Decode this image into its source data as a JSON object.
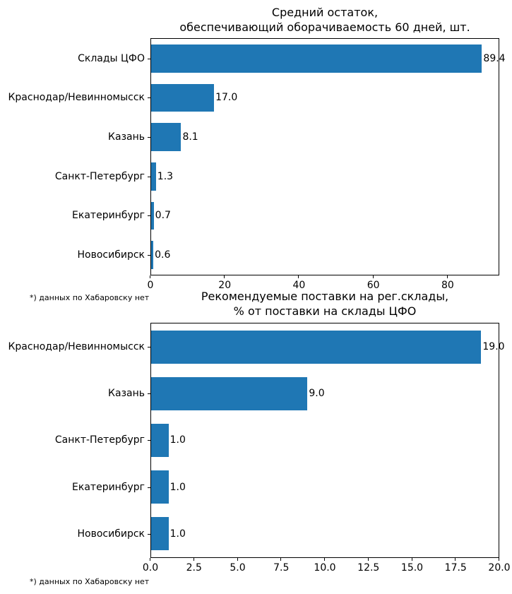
{
  "figure": {
    "background": "#ffffff",
    "bar_color": "#1f77b4"
  },
  "chart_data": [
    {
      "type": "bar",
      "orientation": "horizontal",
      "title_lines": [
        "Средний остаток,",
        "обеспечивающий оборачиваемость 60 дней, шт."
      ],
      "categories": [
        "Склады ЦФО",
        "Краснодар/Невинномысск",
        "Казань",
        "Санкт-Петербург",
        "Екатеринбург",
        "Новосибирск"
      ],
      "values": [
        89.4,
        17.0,
        8.1,
        1.3,
        0.7,
        0.6
      ],
      "value_labels": [
        "89.4",
        "17.0",
        "8.1",
        "1.3",
        "0.7",
        "0.6"
      ],
      "xlim": [
        0,
        93.9
      ],
      "xticks": [
        0,
        20,
        40,
        60,
        80
      ],
      "xtick_labels": [
        "0",
        "20",
        "40",
        "60",
        "80"
      ],
      "grid": false,
      "legend": null,
      "footnote": "*) данных по Хабаровску нет"
    },
    {
      "type": "bar",
      "orientation": "horizontal",
      "title_lines": [
        "Рекомендуемые поставки на рег.склады,",
        "% от поставки на склады ЦФО"
      ],
      "categories": [
        "Краснодар/Невинномысск",
        "Казань",
        "Санкт-Петербург",
        "Екатеринбург",
        "Новосибирск"
      ],
      "values": [
        19.0,
        9.0,
        1.0,
        1.0,
        1.0
      ],
      "value_labels": [
        "19.0",
        "9.0",
        "1.0",
        "1.0",
        "1.0"
      ],
      "xlim": [
        0,
        20.0
      ],
      "xticks": [
        0.0,
        2.5,
        5.0,
        7.5,
        10.0,
        12.5,
        15.0,
        17.5,
        20.0
      ],
      "xtick_labels": [
        "0.0",
        "2.5",
        "5.0",
        "7.5",
        "10.0",
        "12.5",
        "15.0",
        "17.5",
        "20.0"
      ],
      "grid": false,
      "legend": null,
      "footnote": "*) данных по Хабаровску нет"
    }
  ]
}
